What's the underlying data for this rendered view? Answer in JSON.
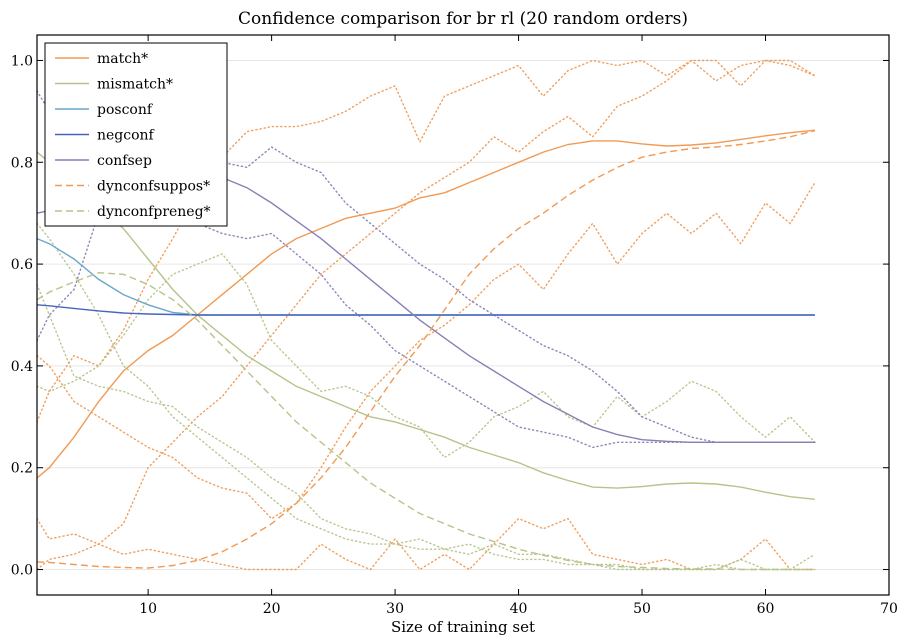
{
  "chart_data": {
    "type": "line",
    "title": "Confidence comparison for br rl (20 random orders)",
    "xlabel": "Size of training set",
    "ylabel": "",
    "xlim": [
      1,
      70
    ],
    "ylim": [
      -0.05,
      1.05
    ],
    "xticks": [
      10,
      20,
      30,
      40,
      50,
      60,
      70
    ],
    "yticks": [
      0.0,
      0.2,
      0.4,
      0.6,
      0.8,
      1.0
    ],
    "ytick_labels": [
      "0.0",
      "0.2",
      "0.4",
      "0.6",
      "0.8",
      "1.0"
    ],
    "grid": "horizontal",
    "legend_position": "upper-left",
    "x": [
      1,
      2,
      4,
      6,
      8,
      10,
      12,
      14,
      16,
      18,
      20,
      22,
      24,
      26,
      28,
      30,
      32,
      34,
      36,
      38,
      40,
      42,
      44,
      46,
      48,
      50,
      52,
      54,
      56,
      58,
      60,
      62,
      64
    ],
    "series": [
      {
        "name": "match*",
        "color": "#f09a55",
        "style": "solid",
        "values": [
          0.18,
          0.2,
          0.26,
          0.33,
          0.39,
          0.43,
          0.46,
          0.5,
          0.54,
          0.58,
          0.62,
          0.65,
          0.67,
          0.69,
          0.7,
          0.71,
          0.73,
          0.74,
          0.76,
          0.78,
          0.8,
          0.82,
          0.835,
          0.842,
          0.842,
          0.836,
          0.832,
          0.834,
          0.838,
          0.845,
          0.852,
          0.858,
          0.863
        ]
      },
      {
        "name": "mismatch*",
        "color": "#b5c48a",
        "style": "solid",
        "values": [
          0.82,
          0.8,
          0.76,
          0.71,
          0.67,
          0.61,
          0.55,
          0.5,
          0.46,
          0.42,
          0.39,
          0.36,
          0.34,
          0.32,
          0.3,
          0.29,
          0.275,
          0.26,
          0.24,
          0.225,
          0.21,
          0.19,
          0.175,
          0.162,
          0.16,
          0.163,
          0.168,
          0.17,
          0.168,
          0.162,
          0.152,
          0.143,
          0.138
        ]
      },
      {
        "name": "posconf",
        "color": "#6aa7cc",
        "style": "solid",
        "values": [
          0.65,
          0.64,
          0.61,
          0.57,
          0.54,
          0.52,
          0.505,
          0.5,
          0.5,
          0.5,
          0.5,
          0.5,
          0.5,
          0.5,
          0.5,
          0.5,
          0.5,
          0.5,
          0.5,
          0.5,
          0.5,
          0.5,
          0.5,
          0.5,
          0.5,
          0.5,
          0.5,
          0.5,
          0.5,
          0.5,
          0.5,
          0.5,
          0.5
        ]
      },
      {
        "name": "negconf",
        "color": "#4565c0",
        "style": "solid",
        "values": [
          0.52,
          0.518,
          0.513,
          0.508,
          0.504,
          0.502,
          0.501,
          0.5,
          0.5,
          0.5,
          0.5,
          0.5,
          0.5,
          0.5,
          0.5,
          0.5,
          0.5,
          0.5,
          0.5,
          0.5,
          0.5,
          0.5,
          0.5,
          0.5,
          0.5,
          0.5,
          0.5,
          0.5,
          0.5,
          0.5,
          0.5,
          0.5,
          0.5
        ]
      },
      {
        "name": "confsep",
        "color": "#8a7fb5",
        "style": "solid",
        "values": [
          0.7,
          0.705,
          0.72,
          0.74,
          0.76,
          0.77,
          0.775,
          0.778,
          0.77,
          0.75,
          0.72,
          0.685,
          0.65,
          0.61,
          0.57,
          0.53,
          0.49,
          0.455,
          0.42,
          0.39,
          0.36,
          0.33,
          0.305,
          0.28,
          0.265,
          0.255,
          0.252,
          0.25,
          0.25,
          0.25,
          0.25,
          0.25,
          0.25
        ]
      },
      {
        "name": "dynconfsuppos*",
        "color": "#f09a55",
        "style": "dashed",
        "values": [
          0.015,
          0.014,
          0.01,
          0.006,
          0.004,
          0.003,
          0.008,
          0.018,
          0.035,
          0.06,
          0.09,
          0.13,
          0.18,
          0.24,
          0.31,
          0.38,
          0.44,
          0.51,
          0.58,
          0.63,
          0.67,
          0.7,
          0.735,
          0.765,
          0.79,
          0.81,
          0.82,
          0.827,
          0.83,
          0.835,
          0.842,
          0.85,
          0.862
        ]
      },
      {
        "name": "dynconfpreneg*",
        "color": "#b5c48a",
        "style": "dashed",
        "values": [
          0.53,
          0.545,
          0.565,
          0.583,
          0.58,
          0.56,
          0.53,
          0.49,
          0.44,
          0.39,
          0.34,
          0.29,
          0.25,
          0.21,
          0.17,
          0.14,
          0.11,
          0.09,
          0.07,
          0.055,
          0.04,
          0.028,
          0.018,
          0.01,
          0.006,
          0.004,
          0.002,
          0.001,
          0.001,
          0.0,
          0.0,
          0.0,
          0.0
        ]
      }
    ],
    "dotted_traces": [
      {
        "color": "#f09a55",
        "values": [
          0.29,
          0.35,
          0.42,
          0.4,
          0.47,
          0.57,
          0.65,
          0.74,
          0.81,
          0.86,
          0.87,
          0.87,
          0.88,
          0.9,
          0.93,
          0.95,
          0.84,
          0.93,
          0.95,
          0.97,
          0.99,
          0.93,
          0.98,
          1.0,
          0.99,
          1.0,
          0.97,
          1.0,
          1.0,
          0.95,
          1.0,
          0.99,
          0.97
        ]
      },
      {
        "color": "#f09a55",
        "values": [
          0.1,
          0.06,
          0.07,
          0.05,
          0.09,
          0.2,
          0.25,
          0.3,
          0.34,
          0.4,
          0.46,
          0.52,
          0.58,
          0.62,
          0.66,
          0.7,
          0.74,
          0.77,
          0.8,
          0.85,
          0.82,
          0.86,
          0.89,
          0.85,
          0.91,
          0.93,
          0.96,
          1.0,
          0.96,
          0.99,
          1.0,
          1.0,
          0.97
        ]
      },
      {
        "color": "#f09a55",
        "values": [
          0.42,
          0.4,
          0.33,
          0.3,
          0.27,
          0.24,
          0.22,
          0.18,
          0.16,
          0.15,
          0.1,
          0.13,
          0.2,
          0.28,
          0.35,
          0.4,
          0.45,
          0.48,
          0.52,
          0.57,
          0.6,
          0.55,
          0.62,
          0.68,
          0.6,
          0.66,
          0.7,
          0.66,
          0.7,
          0.64,
          0.72,
          0.68,
          0.76
        ]
      },
      {
        "color": "#f09a55",
        "values": [
          0.0,
          0.02,
          0.03,
          0.05,
          0.03,
          0.04,
          0.03,
          0.02,
          0.01,
          0.0,
          0.0,
          0.0,
          0.05,
          0.02,
          0.0,
          0.06,
          0.0,
          0.03,
          0.0,
          0.05,
          0.1,
          0.08,
          0.1,
          0.03,
          0.02,
          0.01,
          0.02,
          0.0,
          0.0,
          0.02,
          0.06,
          0.0,
          0.0
        ]
      },
      {
        "color": "#b5c48a",
        "values": [
          0.68,
          0.65,
          0.58,
          0.5,
          0.4,
          0.36,
          0.3,
          0.26,
          0.22,
          0.18,
          0.14,
          0.1,
          0.08,
          0.06,
          0.05,
          0.05,
          0.04,
          0.04,
          0.03,
          0.05,
          0.03,
          0.03,
          0.02,
          0.01,
          0.01,
          0.0,
          0.0,
          0.0,
          0.0,
          0.02,
          0.0,
          0.0,
          0.03
        ]
      },
      {
        "color": "#b5c48a",
        "values": [
          0.56,
          0.5,
          0.38,
          0.36,
          0.35,
          0.33,
          0.32,
          0.28,
          0.25,
          0.22,
          0.18,
          0.15,
          0.1,
          0.08,
          0.07,
          0.05,
          0.06,
          0.04,
          0.05,
          0.03,
          0.02,
          0.02,
          0.01,
          0.01,
          0.0,
          0.0,
          0.0,
          0.0,
          0.01,
          0.0,
          0.0,
          0.0,
          0.0
        ]
      },
      {
        "color": "#b5c48a",
        "values": [
          0.36,
          0.35,
          0.37,
          0.4,
          0.46,
          0.53,
          0.58,
          0.6,
          0.62,
          0.56,
          0.45,
          0.4,
          0.35,
          0.36,
          0.34,
          0.3,
          0.28,
          0.22,
          0.25,
          0.3,
          0.32,
          0.35,
          0.3,
          0.28,
          0.34,
          0.3,
          0.33,
          0.37,
          0.35,
          0.3,
          0.26,
          0.3,
          0.25
        ]
      },
      {
        "color": "#8a7fb5",
        "values": [
          0.45,
          0.5,
          0.55,
          0.7,
          0.78,
          0.8,
          0.81,
          0.82,
          0.8,
          0.79,
          0.83,
          0.8,
          0.78,
          0.72,
          0.68,
          0.64,
          0.6,
          0.57,
          0.53,
          0.5,
          0.47,
          0.44,
          0.42,
          0.39,
          0.35,
          0.3,
          0.28,
          0.26,
          0.25,
          0.25,
          0.25,
          0.25,
          0.25
        ]
      },
      {
        "color": "#8a7fb5",
        "values": [
          0.94,
          0.9,
          0.82,
          0.76,
          0.73,
          0.72,
          0.7,
          0.68,
          0.66,
          0.65,
          0.66,
          0.62,
          0.58,
          0.52,
          0.48,
          0.43,
          0.4,
          0.37,
          0.34,
          0.31,
          0.28,
          0.27,
          0.26,
          0.24,
          0.25,
          0.25,
          0.25,
          0.25,
          0.25,
          0.25,
          0.25,
          0.25,
          0.25
        ]
      }
    ]
  }
}
